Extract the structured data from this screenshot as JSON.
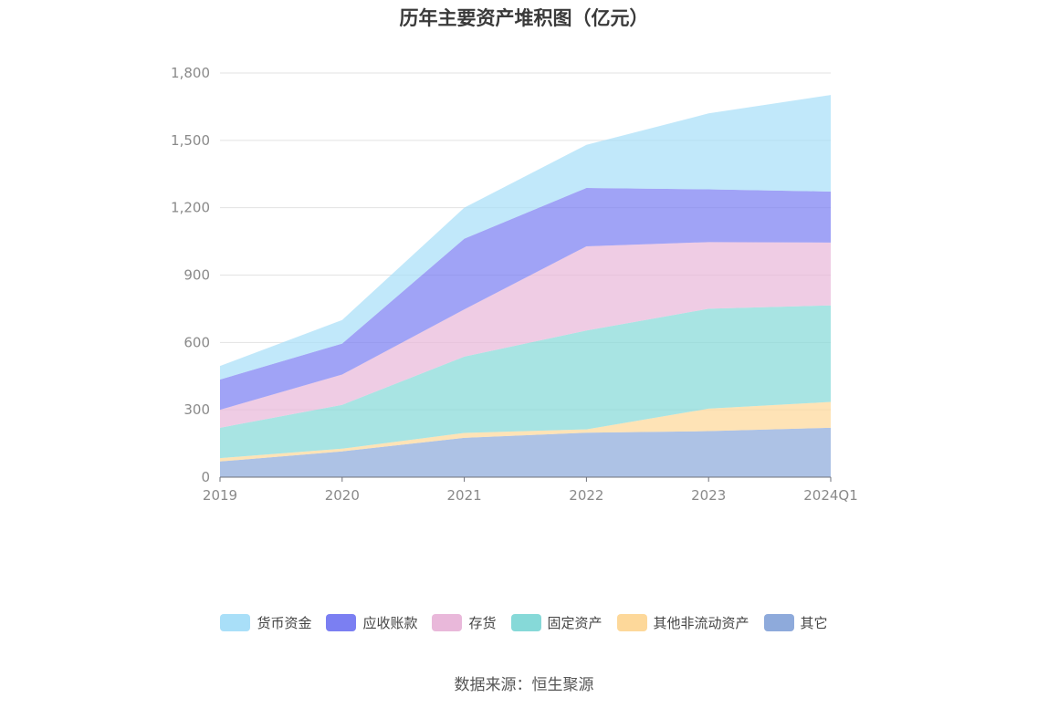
{
  "chart_data": {
    "type": "area",
    "stacked": true,
    "title": "历年主要资产堆积图（亿元）",
    "source": "数据来源：恒生聚源",
    "categories": [
      "2019",
      "2020",
      "2021",
      "2022",
      "2023",
      "2024Q1"
    ],
    "ylim": [
      0,
      1800
    ],
    "yticks": [
      "0",
      "300",
      "600",
      "900",
      "1,200",
      "1,500",
      "1,800"
    ],
    "ytick_values": [
      0,
      300,
      600,
      900,
      1200,
      1500,
      1800
    ],
    "grid": true,
    "legend_position": "bottom",
    "series": [
      {
        "name": "其它",
        "color": "#8eaadb",
        "values": [
          70,
          115,
          175,
          198,
          205,
          220
        ]
      },
      {
        "name": "其他非流动资产",
        "color": "#fdd89a",
        "values": [
          15,
          12,
          22,
          15,
          100,
          115
        ]
      },
      {
        "name": "固定资产",
        "color": "#86d9d8",
        "values": [
          135,
          195,
          340,
          440,
          445,
          430
        ]
      },
      {
        "name": "存货",
        "color": "#e9b8da",
        "values": [
          80,
          135,
          210,
          375,
          297,
          280
        ]
      },
      {
        "name": "应收账款",
        "color": "#7b7ff2",
        "values": [
          135,
          138,
          315,
          260,
          235,
          227
        ]
      },
      {
        "name": "货币资金",
        "color": "#a9dff8",
        "values": [
          60,
          105,
          138,
          192,
          338,
          430
        ]
      }
    ],
    "legend_order": [
      "货币资金",
      "应收账款",
      "存货",
      "固定资产",
      "其他非流动资产",
      "其它"
    ]
  }
}
